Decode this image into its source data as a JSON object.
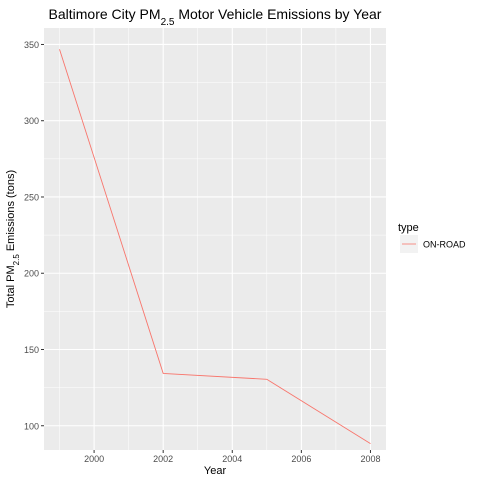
{
  "chart_data": {
    "type": "line",
    "title_main": "Baltimore City PM",
    "title_sub": "2.5",
    "title_tail": " Motor Vehicle Emissions by Year",
    "xlabel": "Year",
    "ylabel_pre": "Total PM",
    "ylabel_sub": "2.5",
    "ylabel_tail": " Emissions (tons)",
    "xlim": [
      1998.55,
      2008.45
    ],
    "ylim": [
      84.1,
      360.8
    ],
    "x_ticks": [
      2000,
      2002,
      2004,
      2006,
      2008
    ],
    "x_tick_labels": [
      "2000",
      "2002",
      "2004",
      "2006",
      "2008"
    ],
    "y_ticks": [
      100,
      150,
      200,
      250,
      300,
      350
    ],
    "y_tick_labels": [
      "100",
      "150",
      "200",
      "250",
      "300",
      "350"
    ],
    "grid": true,
    "legend": {
      "title": "type",
      "position": "right"
    },
    "series": [
      {
        "name": "ON-ROAD",
        "color": "#F8766D",
        "x": [
          1999,
          2002,
          2005,
          2008
        ],
        "y": [
          346.82,
          134.31,
          130.43,
          88.28
        ]
      }
    ]
  }
}
